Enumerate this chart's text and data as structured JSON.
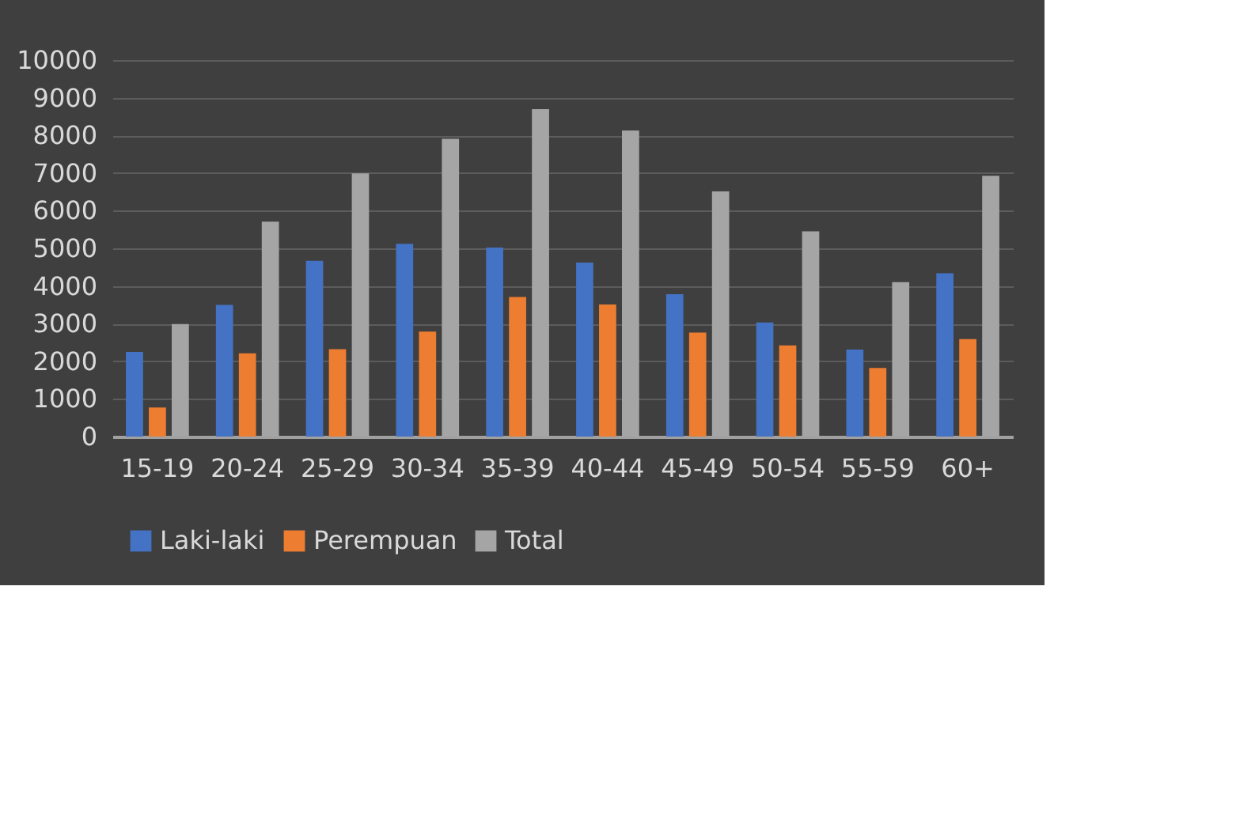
{
  "chart_data": {
    "type": "bar",
    "categories": [
      "15-19",
      "20-24",
      "25-29",
      "30-34",
      "35-39",
      "40-44",
      "45-49",
      "50-54",
      "55-59",
      "60+"
    ],
    "series": [
      {
        "name": "Laki-laki",
        "color": "#4472c4",
        "values": [
          2250,
          3500,
          4670,
          5120,
          5020,
          4620,
          3780,
          3030,
          2310,
          4340
        ]
      },
      {
        "name": "Perempuan",
        "color": "#ed7d31",
        "values": [
          770,
          2210,
          2320,
          2790,
          3710,
          3510,
          2760,
          2420,
          1820,
          2590
        ]
      },
      {
        "name": "Total",
        "color": "#a5a5a5",
        "values": [
          2990,
          5710,
          6990,
          7910,
          8700,
          8130,
          6510,
          5450,
          4100,
          6930
        ]
      }
    ],
    "ylim": [
      0,
      10000
    ],
    "yticks": [
      0,
      1000,
      2000,
      3000,
      4000,
      5000,
      6000,
      7000,
      8000,
      9000,
      10000
    ],
    "grid": "y",
    "legend": "bottom"
  }
}
